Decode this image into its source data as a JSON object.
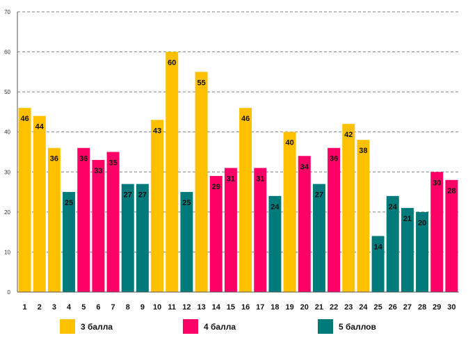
{
  "chart_data": {
    "type": "bar",
    "title": "",
    "xlabel": "",
    "ylabel": "",
    "ylim": [
      0,
      70
    ],
    "yticks": [
      0,
      10,
      20,
      30,
      40,
      50,
      60,
      70
    ],
    "grid": true,
    "legend_position": "bottom",
    "categories": [
      "1",
      "2",
      "3",
      "4",
      "5",
      "6",
      "7",
      "8",
      "9",
      "10",
      "11",
      "12",
      "13",
      "14",
      "15",
      "16",
      "17",
      "18",
      "19",
      "20",
      "21",
      "22",
      "23",
      "24",
      "25",
      "26",
      "27",
      "28",
      "29",
      "30"
    ],
    "values": [
      46,
      44,
      36,
      25,
      36,
      33,
      35,
      27,
      27,
      43,
      60,
      25,
      55,
      29,
      31,
      46,
      31,
      24,
      40,
      34,
      27,
      36,
      42,
      38,
      14,
      24,
      21,
      20,
      30,
      28
    ],
    "value_labels": [
      "46",
      "44",
      "36",
      "25",
      "36",
      "33",
      "35",
      "27",
      "27",
      "43",
      "60",
      "25",
      "55",
      "29",
      "31",
      "46",
      "31",
      "24",
      "40",
      "34",
      "27",
      "36",
      "42",
      "38",
      "14",
      "24",
      "21",
      "20",
      "30",
      "28"
    ],
    "bar_groups": [
      "3 балла",
      "3 балла",
      "3 балла",
      "5 баллов",
      "4 балла",
      "4 балла",
      "4 балла",
      "5 баллов",
      "5 баллов",
      "3 балла",
      "3 балла",
      "5 баллов",
      "3 балла",
      "4 балла",
      "4 балла",
      "3 балла",
      "4 балла",
      "5 баллов",
      "3 балла",
      "4 балла",
      "5 баллов",
      "4 балла",
      "3 балла",
      "3 балла",
      "5 баллов",
      "5 баллов",
      "5 баллов",
      "5 баллов",
      "4 балла",
      "4 балла"
    ],
    "legend": [
      {
        "name": "3 балла",
        "color": "#FFC000"
      },
      {
        "name": "4 балла",
        "color": "#FF0066"
      },
      {
        "name": "5 баллов",
        "color": "#007A7A"
      }
    ]
  }
}
